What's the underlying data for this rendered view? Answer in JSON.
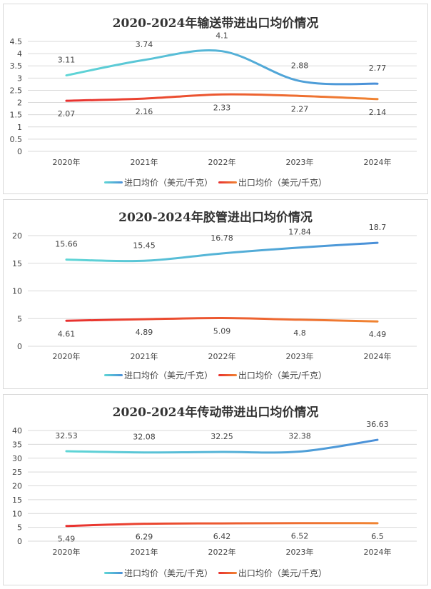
{
  "colors": {
    "import_start": "#5fd6d6",
    "import_end": "#4a8fd8",
    "export_start": "#e8302f",
    "export_end": "#f08432",
    "grid": "#d9d9d9",
    "text": "#444444"
  },
  "chart_data": [
    {
      "type": "line",
      "title": "2020-2024年输送带进出口均价情况",
      "categories": [
        "2020年",
        "2021年",
        "2022年",
        "2023年",
        "2024年"
      ],
      "ylim": [
        0,
        4.5
      ],
      "yticks": [
        "0",
        "0.5",
        "1",
        "1.5",
        "2",
        "2.5",
        "3",
        "3.5",
        "4",
        "4.5"
      ],
      "grid": true,
      "legend": "bottom",
      "series": [
        {
          "name": "进口均价（美元/千克）",
          "values": [
            3.11,
            3.74,
            4.1,
            2.88,
            2.77
          ]
        },
        {
          "name": "出口均价（美元/千克）",
          "values": [
            2.07,
            2.16,
            2.33,
            2.27,
            2.14
          ]
        }
      ]
    },
    {
      "type": "line",
      "title": "2020-2024年胶管进出口均价情况",
      "categories": [
        "2020年",
        "2021年",
        "2022年",
        "2023年",
        "2024年"
      ],
      "ylim": [
        0,
        20
      ],
      "yticks": [
        "0",
        "5",
        "10",
        "15",
        "20"
      ],
      "grid": true,
      "legend": "bottom",
      "series": [
        {
          "name": "进口均价（美元/千克）",
          "values": [
            15.66,
            15.45,
            16.78,
            17.84,
            18.7
          ]
        },
        {
          "name": "出口均价（美元/千克）",
          "values": [
            4.61,
            4.89,
            5.09,
            4.8,
            4.49
          ]
        }
      ]
    },
    {
      "type": "line",
      "title": "2020-2024年传动带进出口均价情况",
      "categories": [
        "2020年",
        "2021年",
        "2022年",
        "2023年",
        "2024年"
      ],
      "ylim": [
        0,
        40
      ],
      "yticks": [
        "0",
        "5",
        "10",
        "15",
        "20",
        "25",
        "30",
        "35",
        "40"
      ],
      "grid": true,
      "legend": "bottom",
      "series": [
        {
          "name": "进口均价（美元/千克）",
          "values": [
            32.53,
            32.08,
            32.25,
            32.38,
            36.63
          ]
        },
        {
          "name": "出口均价（美元/千克）",
          "values": [
            5.49,
            6.29,
            6.42,
            6.52,
            6.5
          ]
        }
      ]
    }
  ]
}
